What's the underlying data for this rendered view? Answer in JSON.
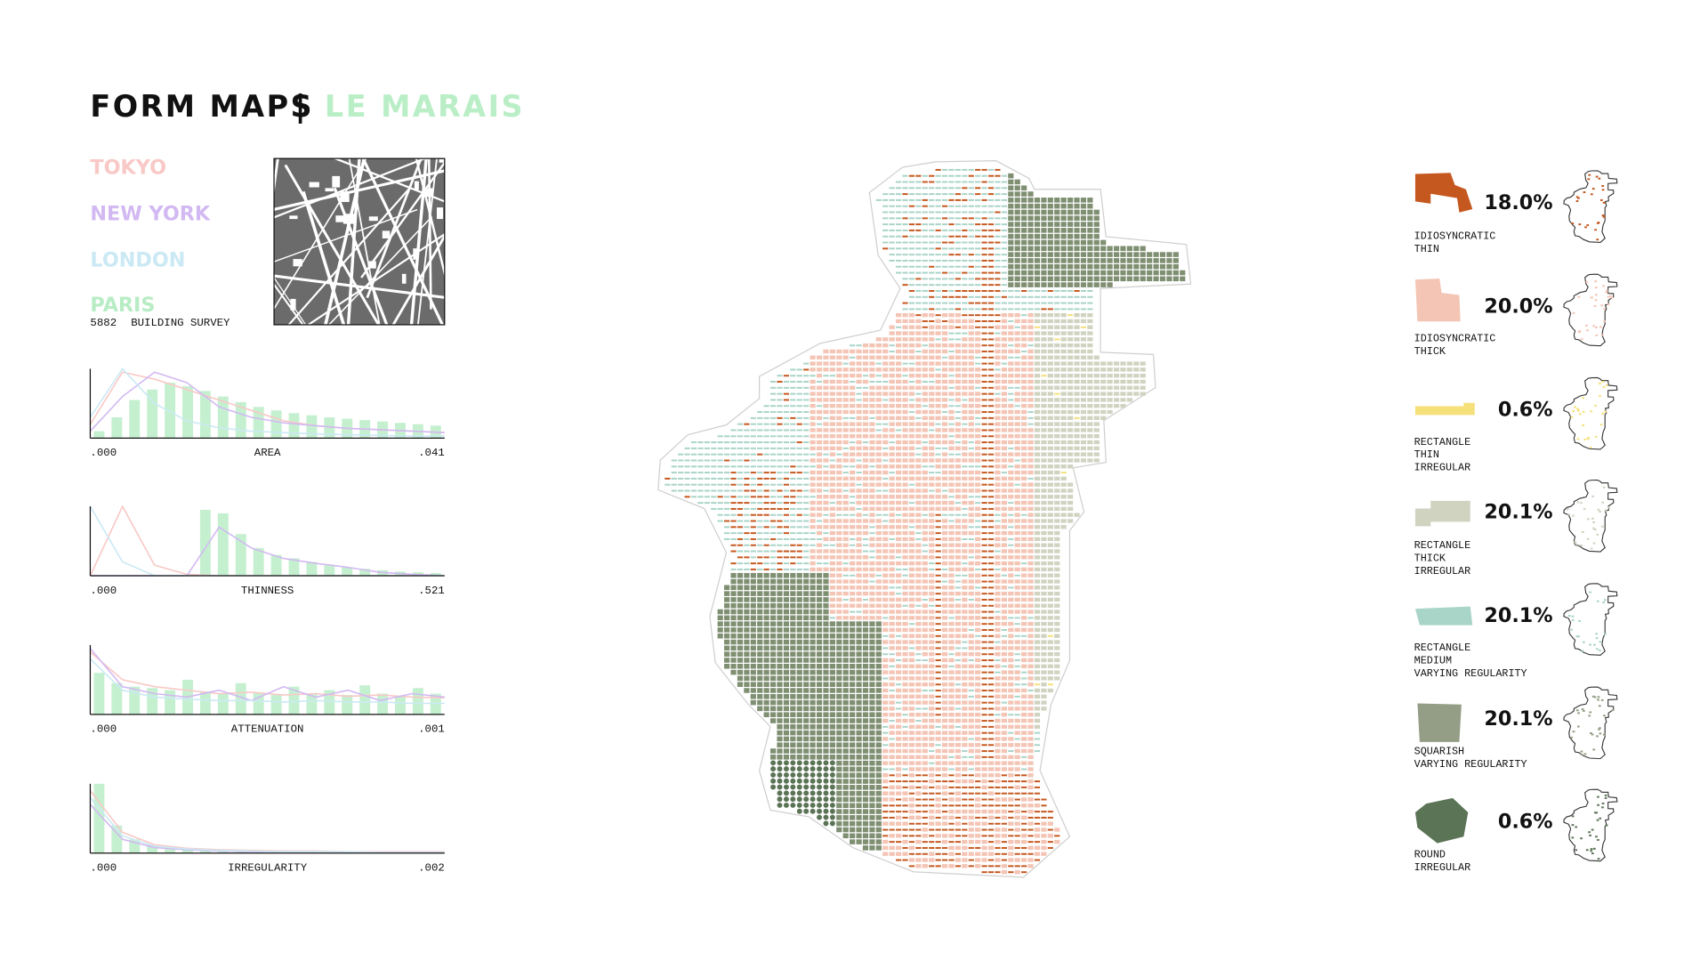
{
  "header": {
    "title": "FORM MAPS",
    "separator": "|",
    "subtitle": "LE MARAIS",
    "subtitle_color": "#b9eec6"
  },
  "cities": [
    {
      "name": "TOKYO",
      "color": "#f8c9c6"
    },
    {
      "name": "NEW YORK",
      "color": "#d2b9f2"
    },
    {
      "name": "LONDON",
      "color": "#cbe9f4"
    },
    {
      "name": "PARIS",
      "color": "#b7ecc4"
    }
  ],
  "survey": {
    "count": "5882",
    "label": "BUILDING SURVEY"
  },
  "distributions": [
    {
      "label": "AREA",
      "min": ".000",
      "max": ".041",
      "bars": [
        10,
        30,
        55,
        70,
        80,
        75,
        68,
        60,
        52,
        45,
        40,
        36,
        33,
        30,
        28,
        26,
        24,
        22,
        20,
        18
      ],
      "curves": [
        [
          20,
          95,
          85,
          70,
          55,
          40,
          25,
          18,
          14,
          12,
          10,
          8
        ],
        [
          10,
          60,
          95,
          80,
          45,
          30,
          22,
          18,
          14,
          12,
          10,
          8
        ],
        [
          30,
          100,
          50,
          25,
          15,
          10,
          8,
          6,
          5,
          4,
          3,
          3
        ]
      ]
    },
    {
      "label": "THINNESS",
      "min": ".000",
      "max": ".521",
      "bars": [
        0,
        0,
        0,
        0,
        0,
        0,
        95,
        90,
        60,
        40,
        30,
        25,
        20,
        15,
        12,
        10,
        8,
        6,
        5,
        4
      ],
      "curves": [
        [
          0,
          100,
          15,
          2,
          0,
          0,
          0,
          0,
          0,
          0,
          0,
          0
        ],
        [
          0,
          0,
          0,
          0,
          70,
          40,
          25,
          18,
          12,
          5,
          2,
          0
        ],
        [
          100,
          20,
          0,
          0,
          0,
          0,
          0,
          0,
          0,
          0,
          0,
          0
        ]
      ]
    },
    {
      "label": "ATTENUATION",
      "min": ".000",
      "max": ".001",
      "bars": [
        60,
        45,
        40,
        38,
        35,
        50,
        33,
        30,
        45,
        32,
        28,
        40,
        30,
        35,
        28,
        42,
        30,
        26,
        38,
        30
      ],
      "curves": [
        [
          90,
          50,
          40,
          35,
          30,
          32,
          28,
          30,
          26,
          28,
          25,
          24
        ],
        [
          95,
          40,
          30,
          25,
          35,
          20,
          40,
          25,
          35,
          20,
          30,
          25
        ],
        [
          80,
          35,
          25,
          22,
          20,
          20,
          18,
          20,
          18,
          18,
          16,
          16
        ]
      ]
    },
    {
      "label": "IRREGULARITY",
      "min": ".000",
      "max": ".002",
      "bars": [
        100,
        40,
        20,
        12,
        8,
        6,
        5,
        4,
        3,
        3,
        2,
        2,
        2,
        2,
        2,
        1,
        1,
        1,
        1,
        1
      ],
      "curves": [
        [
          90,
          30,
          12,
          7,
          5,
          4,
          3,
          3,
          2,
          2,
          2,
          2
        ],
        [
          70,
          20,
          8,
          5,
          3,
          2,
          2,
          2,
          1,
          1,
          1,
          1
        ],
        [
          80,
          25,
          10,
          6,
          4,
          3,
          2,
          2,
          2,
          1,
          1,
          1
        ]
      ]
    }
  ],
  "legend": [
    {
      "percent": "18.0%",
      "lines": [
        "IDIOSYNCRATIC",
        "THIN"
      ],
      "color": "#c5581f"
    },
    {
      "percent": "20.0%",
      "lines": [
        "IDIOSYNCRATIC",
        "THICK"
      ],
      "color": "#f4c4b4"
    },
    {
      "percent": "0.6%",
      "lines": [
        "RECTANGLE",
        "THIN",
        "IRREGULAR"
      ],
      "color": "#f5e07a"
    },
    {
      "percent": "20.1%",
      "lines": [
        "RECTANGLE",
        "THICK",
        "IRREGULAR"
      ],
      "color": "#cfd3c0"
    },
    {
      "percent": "20.1%",
      "lines": [
        "RECTANGLE",
        "MEDIUM",
        "VARYING REGULARITY"
      ],
      "color": "#a9d4c8"
    },
    {
      "percent": "20.1%",
      "lines": [
        "SQUARISH",
        "VARYING REGULARITY"
      ],
      "color": "#949e86"
    },
    {
      "percent": "0.6%",
      "lines": [
        "ROUND",
        "IRREGULAR"
      ],
      "color": "#5b7456"
    }
  ]
}
